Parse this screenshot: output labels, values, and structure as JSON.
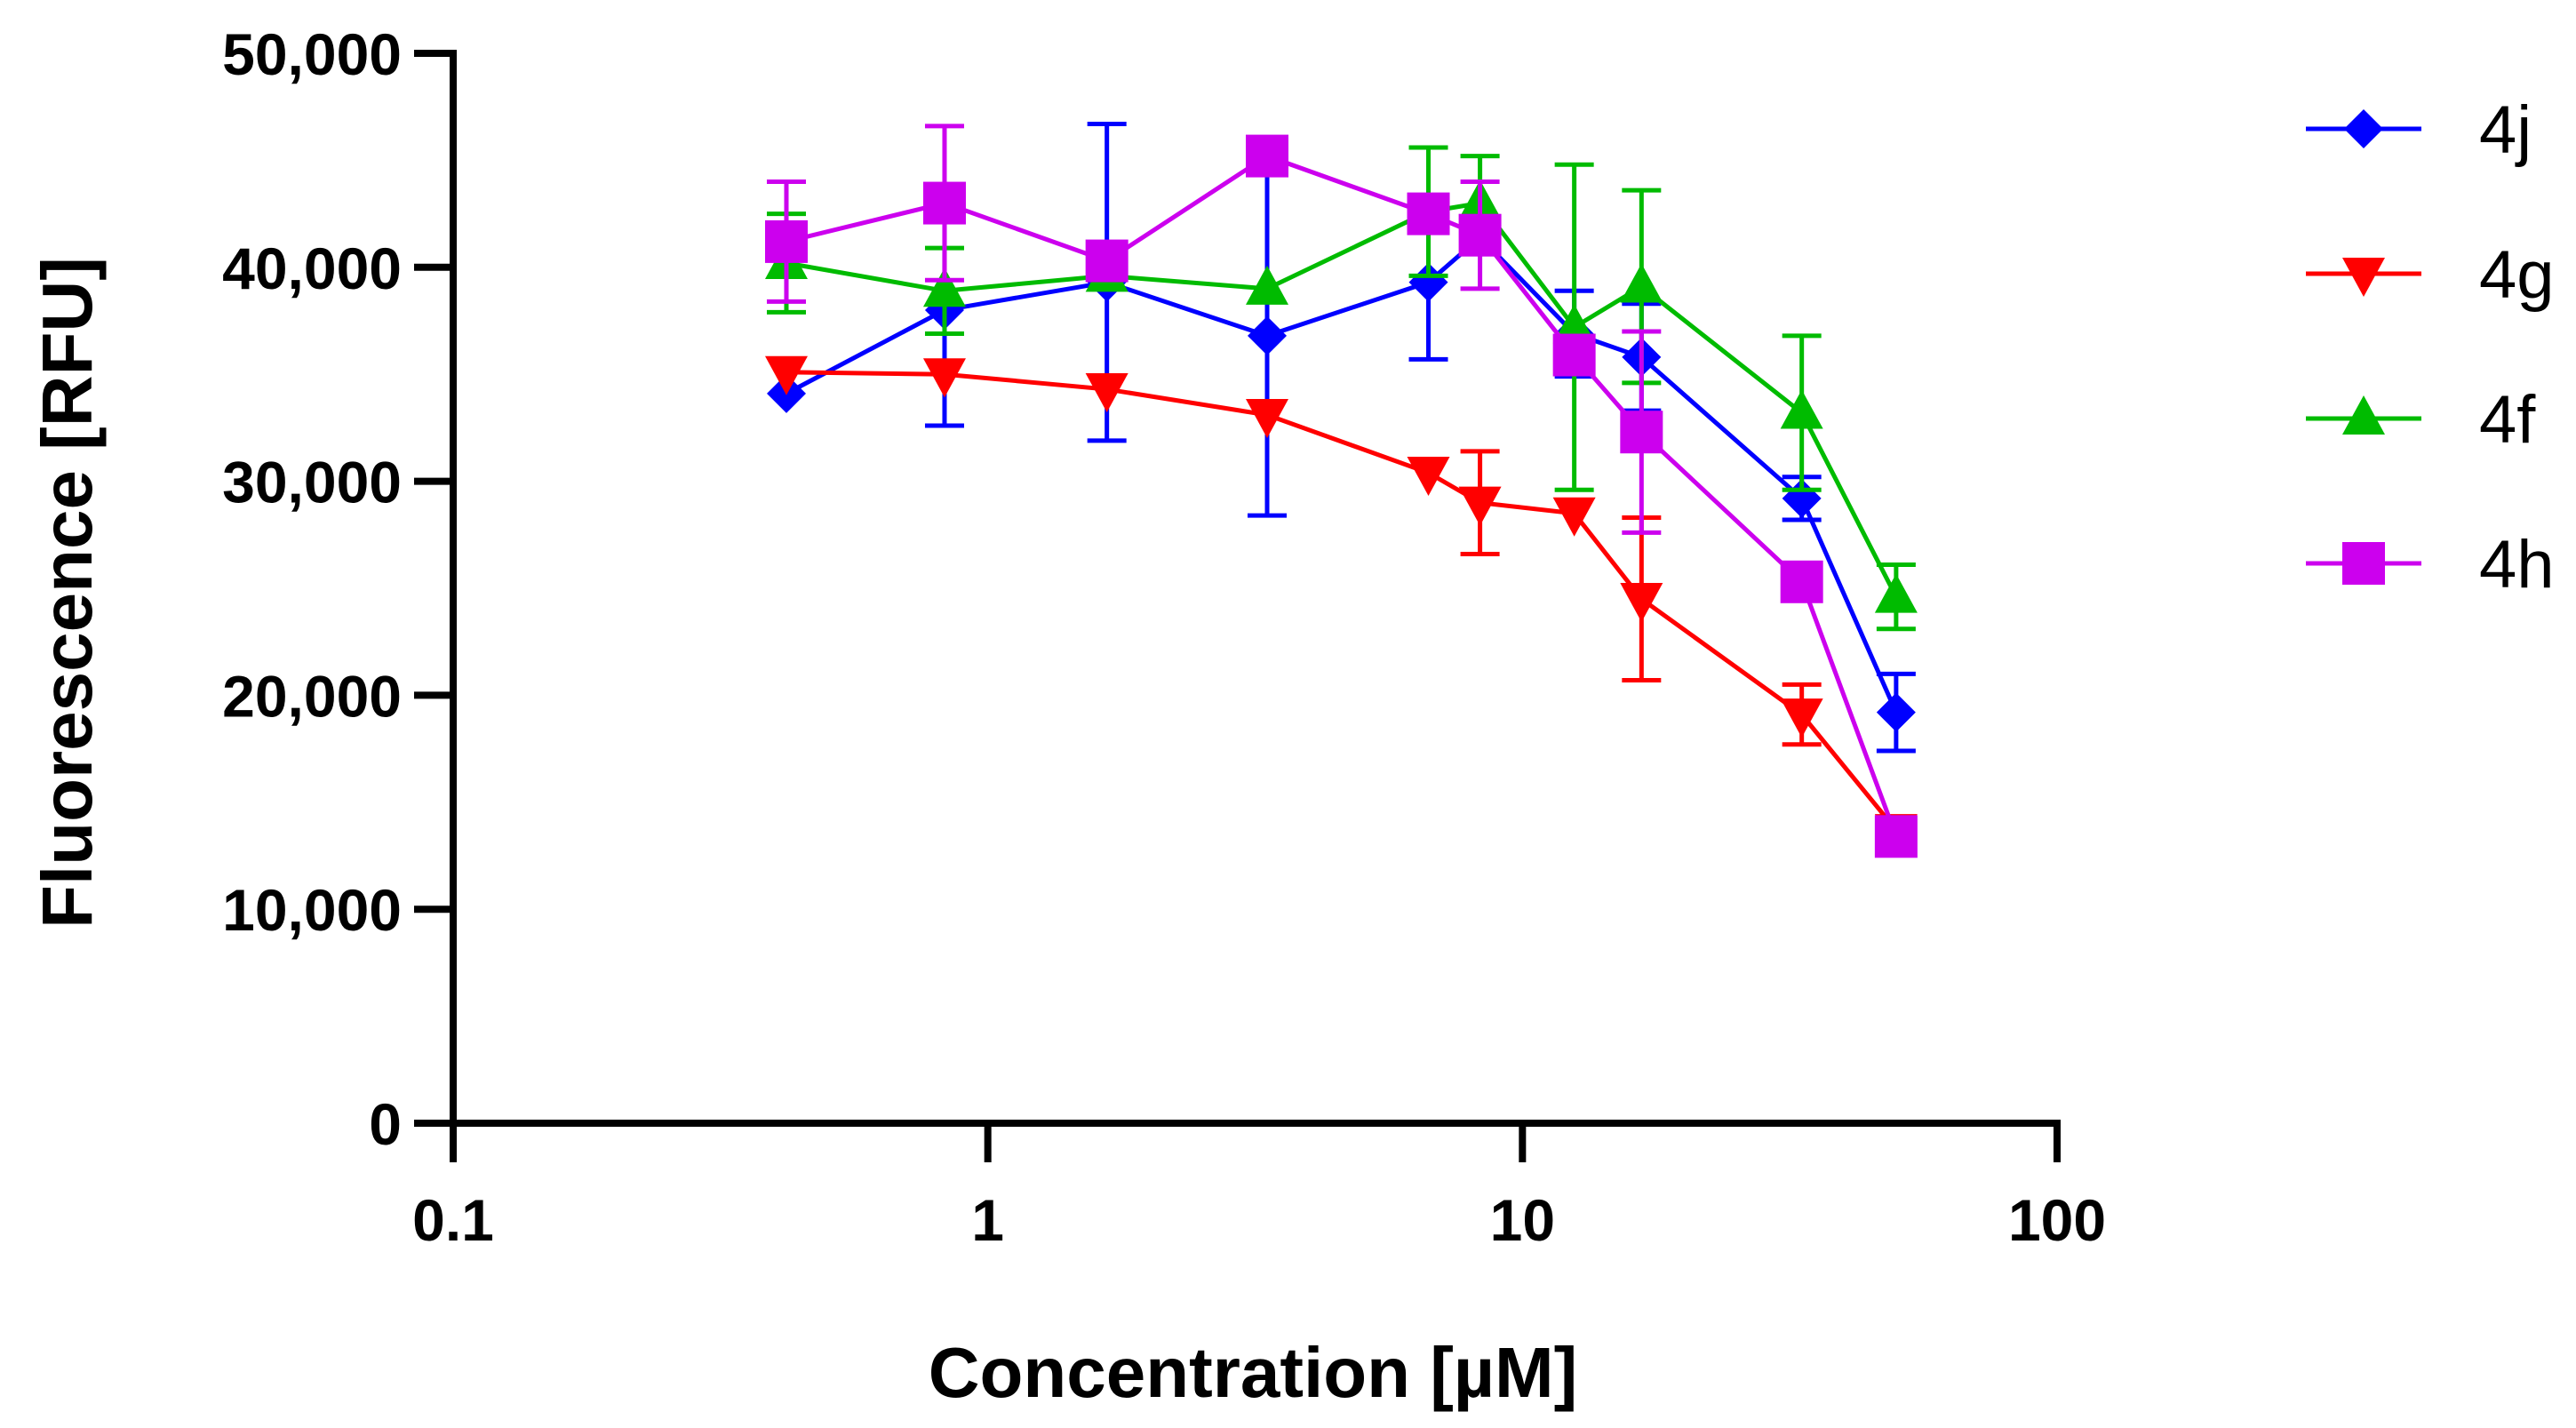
{
  "chart_data": {
    "type": "line",
    "title": "",
    "xlabel": "Concentration [µM]",
    "ylabel": "Fluorescence [RFU]",
    "x_scale": "log",
    "xlim": [
      0.1,
      100
    ],
    "ylim": [
      0,
      50000
    ],
    "x_ticks": [
      0.1,
      1,
      10,
      100
    ],
    "x_tick_labels": [
      "0.1",
      "1",
      "10",
      "100"
    ],
    "y_ticks": [
      0,
      10000,
      20000,
      30000,
      40000,
      50000
    ],
    "y_tick_labels": [
      "0",
      "10,000",
      "20,000",
      "30,000",
      "40,000",
      "50,000"
    ],
    "legend_position": "top-right outside",
    "x": [
      0.42,
      0.83,
      1.67,
      3.33,
      6.67,
      8.33,
      12.5,
      16.7,
      33.3,
      50
    ],
    "series": [
      {
        "name": "4j",
        "color": "#0000ff",
        "marker": "diamond",
        "values": [
          34100,
          38000,
          39300,
          36800,
          39300,
          41400,
          36900,
          35800,
          29200,
          19200
        ],
        "errors": [
          0,
          5400,
          7400,
          8400,
          3600,
          0,
          2000,
          2500,
          1000,
          1800
        ]
      },
      {
        "name": "4g",
        "color": "#ff0000",
        "marker": "triangle-down",
        "values": [
          35100,
          35000,
          34300,
          33100,
          30400,
          29000,
          28500,
          24500,
          19100,
          13700
        ],
        "errors": [
          0,
          0,
          0,
          0,
          0,
          2400,
          0,
          3800,
          1400,
          0
        ]
      },
      {
        "name": "4f",
        "color": "#00bb00",
        "marker": "triangle-up",
        "values": [
          40200,
          38900,
          39600,
          39000,
          42600,
          43000,
          37200,
          39100,
          33200,
          24600
        ],
        "errors": [
          2300,
          2000,
          0,
          0,
          3000,
          2200,
          7600,
          4500,
          3600,
          1500
        ]
      },
      {
        "name": "4h",
        "color": "#cc00ee",
        "marker": "square",
        "values": [
          41200,
          43000,
          40300,
          45200,
          42500,
          41500,
          35900,
          32300,
          25300,
          13400
        ],
        "errors": [
          2800,
          3600,
          0,
          0,
          0,
          2500,
          0,
          4700,
          0,
          0
        ]
      }
    ]
  }
}
